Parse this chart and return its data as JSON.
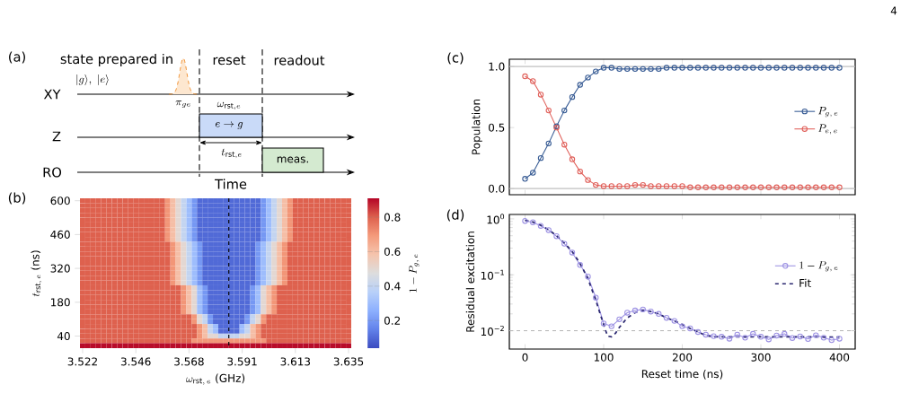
{
  "chart_data": [
    {
      "type": "other",
      "title": "(a)",
      "annotations": [
        "state prepared in",
        "|g\\rangle,\\ |e\\rangle",
        "reset",
        "readout",
        "XY",
        "Z",
        "RO",
        "\\pi_{ge}",
        "\\omega_{\\mathrm{rst},e}",
        "e \\to g",
        "t_{\\mathrm{rst},e}",
        "meas.",
        "Time",
        "4"
      ]
    },
    {
      "type": "heatmap",
      "title": "(b)",
      "xlabel": "\\omega_{\\mathrm{rst},\\,e}\\ \\mbox{(GHz)}",
      "ylabel": "t_{\\mathrm{rst},\\,e}\\ \\mbox{(ns)}",
      "clabel": "1-P_{g,\\,e}",
      "categories": [
        "3.522",
        null,
        null,
        null,
        null,
        null,
        null,
        null,
        null,
        null,
        "3.546",
        null,
        null,
        null,
        null,
        null,
        null,
        null,
        null,
        null,
        "3.568",
        null,
        null,
        null,
        null,
        null,
        null,
        null,
        null,
        null,
        "3.591",
        null,
        null,
        null,
        null,
        null,
        null,
        null,
        null,
        null,
        "3.613",
        null,
        null,
        null,
        null,
        null,
        null,
        null,
        null,
        null,
        "3.635"
      ],
      "y_categories": [
        "600",
        null,
        null,
        null,
        null,
        null,
        null,
        "460",
        null,
        null,
        null,
        null,
        null,
        null,
        "320",
        null,
        null,
        null,
        null,
        null,
        null,
        "180",
        null,
        null,
        null,
        null,
        null,
        null,
        "40",
        null,
        null
      ],
      "cells": [
        [
          0.8,
          0.8,
          0.8,
          0.8,
          0.8,
          0.8,
          0.8,
          0.8,
          0.8,
          0.8,
          0.8,
          0.8,
          0.8,
          0.8,
          0.8,
          0.8,
          0.7,
          0.6,
          0.5,
          0.4,
          0.3,
          0.2,
          0.1,
          0.1,
          0.1,
          0.1,
          0.1,
          0.1,
          0.1,
          0.1,
          0.1,
          0.1,
          0.1,
          0.1,
          0.2,
          0.3,
          0.4,
          0.5,
          0.6,
          0.7,
          0.8,
          0.8,
          0.8,
          0.8,
          0.8,
          0.8,
          0.8,
          0.8,
          0.8,
          0.8,
          0.8
        ],
        [
          0.8,
          0.8,
          0.8,
          0.8,
          0.8,
          0.8,
          0.8,
          0.8,
          0.8,
          0.8,
          0.8,
          0.8,
          0.8,
          0.8,
          0.8,
          0.8,
          0.7,
          0.6,
          0.5,
          0.4,
          0.3,
          0.2,
          0.1,
          0.1,
          0.1,
          0.1,
          0.1,
          0.1,
          0.1,
          0.1,
          0.1,
          0.1,
          0.1,
          0.1,
          0.2,
          0.3,
          0.4,
          0.5,
          0.6,
          0.7,
          0.8,
          0.8,
          0.8,
          0.8,
          0.8,
          0.8,
          0.8,
          0.8,
          0.8,
          0.8,
          0.8
        ],
        [
          0.8,
          0.8,
          0.8,
          0.8,
          0.8,
          0.8,
          0.8,
          0.8,
          0.8,
          0.8,
          0.8,
          0.8,
          0.8,
          0.8,
          0.8,
          0.8,
          0.7,
          0.6,
          0.5,
          0.4,
          0.3,
          0.2,
          0.1,
          0.1,
          0.1,
          0.1,
          0.1,
          0.1,
          0.1,
          0.1,
          0.1,
          0.1,
          0.1,
          0.1,
          0.2,
          0.3,
          0.4,
          0.5,
          0.6,
          0.7,
          0.8,
          0.8,
          0.8,
          0.8,
          0.8,
          0.8,
          0.8,
          0.8,
          0.8,
          0.8,
          0.8
        ],
        [
          0.8,
          0.8,
          0.8,
          0.8,
          0.8,
          0.8,
          0.8,
          0.8,
          0.8,
          0.8,
          0.8,
          0.8,
          0.8,
          0.8,
          0.8,
          0.8,
          0.7,
          0.6,
          0.5,
          0.4,
          0.3,
          0.2,
          0.1,
          0.1,
          0.1,
          0.1,
          0.1,
          0.1,
          0.1,
          0.1,
          0.1,
          0.1,
          0.1,
          0.1,
          0.2,
          0.3,
          0.4,
          0.5,
          0.6,
          0.7,
          0.8,
          0.8,
          0.8,
          0.8,
          0.8,
          0.8,
          0.8,
          0.8,
          0.8,
          0.8,
          0.8
        ],
        [
          0.8,
          0.8,
          0.8,
          0.8,
          0.8,
          0.8,
          0.8,
          0.8,
          0.8,
          0.8,
          0.8,
          0.8,
          0.8,
          0.8,
          0.8,
          0.8,
          0.7,
          0.6,
          0.5,
          0.4,
          0.3,
          0.2,
          0.1,
          0.1,
          0.1,
          0.1,
          0.1,
          0.1,
          0.1,
          0.1,
          0.1,
          0.1,
          0.1,
          0.1,
          0.2,
          0.3,
          0.4,
          0.5,
          0.6,
          0.7,
          0.8,
          0.8,
          0.8,
          0.8,
          0.8,
          0.8,
          0.8,
          0.8,
          0.8,
          0.8,
          0.8
        ],
        [
          0.8,
          0.8,
          0.8,
          0.8,
          0.8,
          0.8,
          0.8,
          0.8,
          0.8,
          0.8,
          0.8,
          0.8,
          0.8,
          0.8,
          0.8,
          0.8,
          0.7,
          0.6,
          0.5,
          0.4,
          0.3,
          0.2,
          0.1,
          0.1,
          0.1,
          0.1,
          0.1,
          0.1,
          0.1,
          0.1,
          0.1,
          0.1,
          0.1,
          0.1,
          0.2,
          0.3,
          0.4,
          0.5,
          0.6,
          0.7,
          0.8,
          0.8,
          0.8,
          0.8,
          0.8,
          0.8,
          0.8,
          0.8,
          0.8,
          0.8,
          0.8
        ],
        [
          0.8,
          0.8,
          0.8,
          0.8,
          0.8,
          0.8,
          0.8,
          0.8,
          0.8,
          0.8,
          0.8,
          0.8,
          0.8,
          0.8,
          0.8,
          0.8,
          0.7,
          0.6,
          0.5,
          0.4,
          0.3,
          0.2,
          0.1,
          0.1,
          0.1,
          0.1,
          0.1,
          0.1,
          0.1,
          0.1,
          0.1,
          0.1,
          0.1,
          0.1,
          0.2,
          0.3,
          0.4,
          0.5,
          0.6,
          0.7,
          0.8,
          0.8,
          0.8,
          0.8,
          0.8,
          0.8,
          0.8,
          0.8,
          0.8,
          0.8,
          0.8
        ],
        [
          0.8,
          0.8,
          0.8,
          0.8,
          0.8,
          0.8,
          0.8,
          0.8,
          0.8,
          0.8,
          0.8,
          0.8,
          0.8,
          0.8,
          0.8,
          0.8,
          0.7,
          0.6,
          0.5,
          0.4,
          0.3,
          0.2,
          0.1,
          0.1,
          0.1,
          0.1,
          0.1,
          0.1,
          0.1,
          0.1,
          0.1,
          0.1,
          0.1,
          0.1,
          0.2,
          0.3,
          0.4,
          0.5,
          0.6,
          0.7,
          0.8,
          0.8,
          0.8,
          0.8,
          0.8,
          0.8,
          0.8,
          0.8,
          0.8,
          0.8,
          0.8
        ],
        [
          0.8,
          0.8,
          0.8,
          0.8,
          0.8,
          0.8,
          0.8,
          0.8,
          0.8,
          0.8,
          0.8,
          0.8,
          0.8,
          0.8,
          0.8,
          0.8,
          0.7,
          0.6,
          0.5,
          0.4,
          0.3,
          0.2,
          0.1,
          0.1,
          0.1,
          0.1,
          0.1,
          0.1,
          0.1,
          0.1,
          0.1,
          0.1,
          0.1,
          0.1,
          0.2,
          0.3,
          0.4,
          0.5,
          0.6,
          0.7,
          0.8,
          0.8,
          0.8,
          0.8,
          0.8,
          0.8,
          0.8,
          0.8,
          0.8,
          0.8,
          0.8
        ],
        [
          0.8,
          0.8,
          0.8,
          0.8,
          0.8,
          0.8,
          0.8,
          0.8,
          0.8,
          0.8,
          0.8,
          0.8,
          0.8,
          0.8,
          0.8,
          0.8,
          0.8,
          0.7,
          0.6,
          0.5,
          0.4,
          0.3,
          0.2,
          0.1,
          0.1,
          0.1,
          0.1,
          0.1,
          0.1,
          0.1,
          0.1,
          0.1,
          0.1,
          0.2,
          0.3,
          0.4,
          0.5,
          0.6,
          0.7,
          0.8,
          0.8,
          0.8,
          0.8,
          0.8,
          0.8,
          0.8,
          0.8,
          0.8,
          0.8,
          0.8,
          0.8
        ],
        [
          0.8,
          0.8,
          0.8,
          0.8,
          0.8,
          0.8,
          0.8,
          0.8,
          0.8,
          0.8,
          0.8,
          0.8,
          0.8,
          0.8,
          0.8,
          0.8,
          0.8,
          0.7,
          0.6,
          0.5,
          0.4,
          0.3,
          0.2,
          0.1,
          0.1,
          0.1,
          0.1,
          0.1,
          0.1,
          0.1,
          0.1,
          0.1,
          0.1,
          0.2,
          0.3,
          0.4,
          0.5,
          0.6,
          0.7,
          0.8,
          0.8,
          0.8,
          0.8,
          0.8,
          0.8,
          0.8,
          0.8,
          0.8,
          0.8,
          0.8,
          0.8
        ],
        [
          0.8,
          0.8,
          0.8,
          0.8,
          0.8,
          0.8,
          0.8,
          0.8,
          0.8,
          0.8,
          0.8,
          0.8,
          0.8,
          0.8,
          0.8,
          0.8,
          0.8,
          0.7,
          0.6,
          0.5,
          0.4,
          0.3,
          0.2,
          0.1,
          0.1,
          0.1,
          0.1,
          0.1,
          0.1,
          0.1,
          0.1,
          0.1,
          0.1,
          0.2,
          0.3,
          0.4,
          0.5,
          0.6,
          0.7,
          0.8,
          0.8,
          0.8,
          0.8,
          0.8,
          0.8,
          0.8,
          0.8,
          0.8,
          0.8,
          0.8,
          0.8
        ],
        [
          0.8,
          0.8,
          0.8,
          0.8,
          0.8,
          0.8,
          0.8,
          0.8,
          0.8,
          0.8,
          0.8,
          0.8,
          0.8,
          0.8,
          0.8,
          0.8,
          0.8,
          0.7,
          0.6,
          0.5,
          0.4,
          0.3,
          0.2,
          0.1,
          0.1,
          0.1,
          0.1,
          0.1,
          0.1,
          0.1,
          0.1,
          0.1,
          0.1,
          0.2,
          0.3,
          0.4,
          0.5,
          0.6,
          0.7,
          0.8,
          0.8,
          0.8,
          0.8,
          0.8,
          0.8,
          0.8,
          0.8,
          0.8,
          0.8,
          0.8,
          0.8
        ],
        [
          0.8,
          0.8,
          0.8,
          0.8,
          0.8,
          0.8,
          0.8,
          0.8,
          0.8,
          0.8,
          0.8,
          0.8,
          0.8,
          0.8,
          0.8,
          0.8,
          0.8,
          0.7,
          0.6,
          0.5,
          0.4,
          0.3,
          0.2,
          0.1,
          0.1,
          0.1,
          0.1,
          0.1,
          0.1,
          0.1,
          0.1,
          0.1,
          0.1,
          0.2,
          0.3,
          0.4,
          0.5,
          0.6,
          0.7,
          0.8,
          0.8,
          0.8,
          0.8,
          0.8,
          0.8,
          0.8,
          0.8,
          0.8,
          0.8,
          0.8,
          0.8
        ],
        [
          0.8,
          0.8,
          0.8,
          0.8,
          0.8,
          0.8,
          0.8,
          0.8,
          0.8,
          0.8,
          0.8,
          0.8,
          0.8,
          0.8,
          0.8,
          0.8,
          0.8,
          0.7,
          0.6,
          0.5,
          0.4,
          0.3,
          0.2,
          0.1,
          0.1,
          0.1,
          0.1,
          0.1,
          0.1,
          0.1,
          0.1,
          0.1,
          0.1,
          0.2,
          0.3,
          0.4,
          0.5,
          0.6,
          0.7,
          0.8,
          0.8,
          0.8,
          0.8,
          0.8,
          0.8,
          0.8,
          0.8,
          0.8,
          0.8,
          0.8,
          0.8
        ],
        [
          0.8,
          0.8,
          0.8,
          0.8,
          0.8,
          0.8,
          0.8,
          0.8,
          0.8,
          0.8,
          0.8,
          0.8,
          0.8,
          0.8,
          0.8,
          0.8,
          0.8,
          0.7,
          0.6,
          0.5,
          0.4,
          0.3,
          0.2,
          0.1,
          0.1,
          0.1,
          0.1,
          0.1,
          0.1,
          0.1,
          0.1,
          0.1,
          0.1,
          0.2,
          0.3,
          0.4,
          0.5,
          0.6,
          0.7,
          0.8,
          0.8,
          0.8,
          0.8,
          0.8,
          0.8,
          0.8,
          0.8,
          0.8,
          0.8,
          0.8,
          0.8
        ],
        [
          0.8,
          0.8,
          0.8,
          0.8,
          0.8,
          0.8,
          0.8,
          0.8,
          0.8,
          0.8,
          0.8,
          0.8,
          0.8,
          0.8,
          0.8,
          0.8,
          0.8,
          0.7,
          0.6,
          0.5,
          0.4,
          0.3,
          0.2,
          0.1,
          0.1,
          0.1,
          0.1,
          0.1,
          0.1,
          0.1,
          0.1,
          0.1,
          0.1,
          0.2,
          0.3,
          0.4,
          0.5,
          0.6,
          0.7,
          0.8,
          0.8,
          0.8,
          0.8,
          0.8,
          0.8,
          0.8,
          0.8,
          0.8,
          0.8,
          0.8,
          0.8
        ],
        [
          0.8,
          0.8,
          0.8,
          0.8,
          0.8,
          0.8,
          0.8,
          0.8,
          0.8,
          0.8,
          0.8,
          0.8,
          0.8,
          0.8,
          0.8,
          0.8,
          0.8,
          0.7,
          0.6,
          0.5,
          0.4,
          0.3,
          0.2,
          0.1,
          0.1,
          0.1,
          0.1,
          0.1,
          0.1,
          0.1,
          0.1,
          0.1,
          0.1,
          0.2,
          0.3,
          0.4,
          0.5,
          0.6,
          0.7,
          0.8,
          0.8,
          0.8,
          0.8,
          0.8,
          0.8,
          0.8,
          0.8,
          0.8,
          0.8,
          0.8,
          0.8
        ],
        [
          0.8,
          0.8,
          0.8,
          0.8,
          0.8,
          0.8,
          0.8,
          0.8,
          0.8,
          0.8,
          0.8,
          0.8,
          0.8,
          0.8,
          0.8,
          0.8,
          0.8,
          0.8,
          0.8,
          0.7,
          0.6,
          0.5,
          0.3,
          0.2,
          0.1,
          0.1,
          0.1,
          0.1,
          0.1,
          0.1,
          0.1,
          0.1,
          0.2,
          0.3,
          0.5,
          0.6,
          0.7,
          0.8,
          0.8,
          0.8,
          0.8,
          0.8,
          0.8,
          0.8,
          0.8,
          0.8,
          0.8,
          0.8,
          0.8,
          0.8,
          0.8
        ],
        [
          0.8,
          0.8,
          0.8,
          0.8,
          0.8,
          0.8,
          0.8,
          0.8,
          0.8,
          0.8,
          0.8,
          0.8,
          0.8,
          0.8,
          0.8,
          0.8,
          0.8,
          0.8,
          0.8,
          0.7,
          0.6,
          0.5,
          0.3,
          0.2,
          0.1,
          0.1,
          0.1,
          0.1,
          0.1,
          0.1,
          0.1,
          0.1,
          0.2,
          0.3,
          0.5,
          0.6,
          0.7,
          0.8,
          0.8,
          0.8,
          0.8,
          0.8,
          0.8,
          0.8,
          0.8,
          0.8,
          0.8,
          0.8,
          0.8,
          0.8,
          0.8
        ],
        [
          0.8,
          0.8,
          0.8,
          0.8,
          0.8,
          0.8,
          0.8,
          0.8,
          0.8,
          0.8,
          0.8,
          0.8,
          0.8,
          0.8,
          0.8,
          0.8,
          0.8,
          0.8,
          0.8,
          0.7,
          0.6,
          0.5,
          0.3,
          0.2,
          0.1,
          0.1,
          0.1,
          0.1,
          0.1,
          0.1,
          0.1,
          0.1,
          0.2,
          0.3,
          0.5,
          0.6,
          0.7,
          0.8,
          0.8,
          0.8,
          0.8,
          0.8,
          0.8,
          0.8,
          0.8,
          0.8,
          0.8,
          0.8,
          0.8,
          0.8,
          0.8
        ],
        [
          0.8,
          0.8,
          0.8,
          0.8,
          0.8,
          0.8,
          0.8,
          0.8,
          0.8,
          0.8,
          0.8,
          0.8,
          0.8,
          0.8,
          0.8,
          0.8,
          0.8,
          0.8,
          0.8,
          0.7,
          0.6,
          0.5,
          0.3,
          0.2,
          0.1,
          0.1,
          0.1,
          0.1,
          0.1,
          0.1,
          0.1,
          0.1,
          0.2,
          0.3,
          0.5,
          0.6,
          0.7,
          0.8,
          0.8,
          0.8,
          0.8,
          0.8,
          0.8,
          0.8,
          0.8,
          0.8,
          0.8,
          0.8,
          0.8,
          0.8,
          0.8
        ],
        [
          0.8,
          0.8,
          0.8,
          0.8,
          0.8,
          0.8,
          0.8,
          0.8,
          0.8,
          0.8,
          0.8,
          0.8,
          0.8,
          0.8,
          0.8,
          0.8,
          0.8,
          0.8,
          0.8,
          0.7,
          0.6,
          0.5,
          0.3,
          0.2,
          0.1,
          0.1,
          0.1,
          0.1,
          0.1,
          0.1,
          0.1,
          0.1,
          0.2,
          0.3,
          0.5,
          0.6,
          0.7,
          0.8,
          0.8,
          0.8,
          0.8,
          0.8,
          0.8,
          0.8,
          0.8,
          0.8,
          0.8,
          0.8,
          0.8,
          0.8,
          0.8
        ],
        [
          0.8,
          0.8,
          0.8,
          0.8,
          0.8,
          0.8,
          0.8,
          0.8,
          0.8,
          0.8,
          0.8,
          0.8,
          0.8,
          0.8,
          0.8,
          0.8,
          0.8,
          0.8,
          0.8,
          0.7,
          0.6,
          0.5,
          0.3,
          0.2,
          0.1,
          0.1,
          0.1,
          0.1,
          0.1,
          0.1,
          0.1,
          0.1,
          0.2,
          0.3,
          0.5,
          0.6,
          0.7,
          0.8,
          0.8,
          0.8,
          0.8,
          0.8,
          0.8,
          0.8,
          0.8,
          0.8,
          0.8,
          0.8,
          0.8,
          0.8,
          0.8
        ],
        [
          0.8,
          0.8,
          0.8,
          0.8,
          0.8,
          0.8,
          0.8,
          0.8,
          0.8,
          0.8,
          0.8,
          0.8,
          0.8,
          0.8,
          0.8,
          0.8,
          0.8,
          0.8,
          0.8,
          0.8,
          0.8,
          0.7,
          0.5,
          0.4,
          0.2,
          0.1,
          0.1,
          0.1,
          0.1,
          0.1,
          0.1,
          0.2,
          0.4,
          0.5,
          0.7,
          0.8,
          0.8,
          0.8,
          0.8,
          0.8,
          0.8,
          0.8,
          0.8,
          0.8,
          0.8,
          0.8,
          0.8,
          0.8,
          0.8,
          0.8,
          0.8
        ],
        [
          0.8,
          0.8,
          0.8,
          0.8,
          0.8,
          0.8,
          0.8,
          0.8,
          0.8,
          0.8,
          0.8,
          0.8,
          0.8,
          0.8,
          0.8,
          0.8,
          0.8,
          0.8,
          0.8,
          0.8,
          0.8,
          0.7,
          0.5,
          0.4,
          0.2,
          0.1,
          0.1,
          0.1,
          0.1,
          0.1,
          0.1,
          0.2,
          0.4,
          0.5,
          0.7,
          0.8,
          0.8,
          0.8,
          0.8,
          0.8,
          0.8,
          0.8,
          0.8,
          0.8,
          0.8,
          0.8,
          0.8,
          0.8,
          0.8,
          0.8,
          0.8
        ],
        [
          0.8,
          0.8,
          0.8,
          0.8,
          0.8,
          0.8,
          0.8,
          0.8,
          0.8,
          0.8,
          0.8,
          0.8,
          0.8,
          0.8,
          0.8,
          0.8,
          0.8,
          0.8,
          0.8,
          0.8,
          0.8,
          0.8,
          0.7,
          0.6,
          0.4,
          0.3,
          0.1,
          0.1,
          0.1,
          0.1,
          0.3,
          0.4,
          0.6,
          0.7,
          0.8,
          0.8,
          0.8,
          0.8,
          0.8,
          0.8,
          0.8,
          0.8,
          0.8,
          0.8,
          0.8,
          0.8,
          0.8,
          0.8,
          0.8,
          0.8,
          0.8
        ],
        [
          0.8,
          0.8,
          0.8,
          0.8,
          0.8,
          0.8,
          0.8,
          0.8,
          0.8,
          0.8,
          0.8,
          0.8,
          0.8,
          0.8,
          0.8,
          0.8,
          0.8,
          0.8,
          0.8,
          0.8,
          0.8,
          0.8,
          0.7,
          0.6,
          0.4,
          0.3,
          0.1,
          0.1,
          0.1,
          0.1,
          0.3,
          0.4,
          0.6,
          0.7,
          0.8,
          0.8,
          0.8,
          0.8,
          0.8,
          0.8,
          0.8,
          0.8,
          0.8,
          0.8,
          0.8,
          0.8,
          0.8,
          0.8,
          0.8,
          0.8,
          0.8
        ],
        [
          0.8,
          0.8,
          0.8,
          0.8,
          0.8,
          0.8,
          0.8,
          0.8,
          0.8,
          0.8,
          0.8,
          0.8,
          0.8,
          0.8,
          0.8,
          0.8,
          0.8,
          0.8,
          0.8,
          0.8,
          0.8,
          0.8,
          0.7,
          0.6,
          0.5,
          0.5,
          0.4,
          0.4,
          0.4,
          0.4,
          0.5,
          0.5,
          0.6,
          0.7,
          0.8,
          0.8,
          0.8,
          0.8,
          0.8,
          0.8,
          0.8,
          0.8,
          0.8,
          0.8,
          0.8,
          0.8,
          0.8,
          0.8,
          0.8,
          0.8,
          0.8
        ],
        [
          0.8,
          0.8,
          0.8,
          0.8,
          0.8,
          0.8,
          0.8,
          0.8,
          0.8,
          0.8,
          0.8,
          0.8,
          0.8,
          0.8,
          0.8,
          0.8,
          0.8,
          0.8,
          0.8,
          0.8,
          0.8,
          0.7,
          0.7,
          0.7,
          0.7,
          0.7,
          0.7,
          0.7,
          0.7,
          0.7,
          0.7,
          0.7,
          0.7,
          0.7,
          0.7,
          0.8,
          0.8,
          0.8,
          0.8,
          0.8,
          0.8,
          0.8,
          0.8,
          0.8,
          0.8,
          0.8,
          0.8,
          0.8,
          0.8,
          0.8,
          0.8
        ],
        [
          0.9,
          0.9,
          0.9,
          0.9,
          0.9,
          0.9,
          0.9,
          0.9,
          0.9,
          0.9,
          0.9,
          0.9,
          0.9,
          0.9,
          0.9,
          0.9,
          0.9,
          0.9,
          0.9,
          0.9,
          0.9,
          0.9,
          0.9,
          0.9,
          0.9,
          0.9,
          0.9,
          0.9,
          0.9,
          0.9,
          0.9,
          0.9,
          0.9,
          0.9,
          0.9,
          0.9,
          0.9,
          0.9,
          0.9,
          0.9,
          0.9,
          0.9,
          0.9,
          0.9,
          0.9,
          0.9,
          0.9,
          0.9,
          0.9,
          0.9,
          0.9
        ]
      ],
      "clim": [
        0.04,
        0.91
      ],
      "cticks": [
        0.2,
        0.4,
        0.6,
        0.8
      ]
    },
    {
      "type": "line",
      "title": "(c)",
      "ylabel": "Population",
      "x": [
        0,
        10,
        20,
        30,
        40,
        50,
        60,
        70,
        80,
        90,
        100,
        110,
        120,
        130,
        140,
        150,
        160,
        170,
        180,
        190,
        200,
        210,
        220,
        230,
        240,
        250,
        260,
        270,
        280,
        290,
        300,
        310,
        320,
        330,
        340,
        350,
        360,
        370,
        380,
        390,
        400
      ],
      "series": [
        {
          "name": "P_{g,\\,e}",
          "color": "#375b94",
          "values": [
            0.08,
            0.13,
            0.25,
            0.37,
            0.51,
            0.64,
            0.75,
            0.85,
            0.91,
            0.96,
            0.99,
            0.99,
            0.98,
            0.98,
            0.98,
            0.98,
            0.98,
            0.98,
            0.99,
            0.99,
            0.99,
            0.99,
            0.99,
            0.99,
            0.99,
            0.99,
            0.99,
            0.99,
            0.99,
            0.99,
            0.99,
            0.99,
            0.99,
            0.99,
            0.99,
            0.99,
            0.99,
            0.99,
            0.99,
            0.99,
            0.99
          ]
        },
        {
          "name": "P_{e,\\,e}",
          "color": "#e0605a",
          "values": [
            0.92,
            0.88,
            0.77,
            0.64,
            0.5,
            0.36,
            0.24,
            0.14,
            0.07,
            0.03,
            0.02,
            0.02,
            0.02,
            0.02,
            0.03,
            0.03,
            0.02,
            0.02,
            0.02,
            0.02,
            0.02,
            0.01,
            0.01,
            0.01,
            0.01,
            0.01,
            0.01,
            0.01,
            0.01,
            0.01,
            0.01,
            0.01,
            0.01,
            0.01,
            0.01,
            0.01,
            0.01,
            0.01,
            0.01,
            0.01,
            0.01
          ]
        }
      ],
      "xlim": [
        -20,
        420
      ],
      "ylim": [
        -0.05,
        1.06
      ],
      "xticks": [
        {
          "value": 0,
          "label": null
        },
        {
          "value": 100,
          "label": null
        },
        {
          "value": 200,
          "label": null
        },
        {
          "value": 300,
          "label": null
        },
        {
          "value": 400,
          "label": null
        }
      ],
      "yticks": [
        {
          "value": 0,
          "label": "0.0"
        },
        {
          "value": 0.5,
          "label": "0.5"
        },
        {
          "value": 1,
          "label": "1.0"
        }
      ],
      "ref_lines": [
        {
          "axis": "y",
          "value": 0,
          "color": "#c0c0c0"
        },
        {
          "axis": "y",
          "value": 1,
          "color": "#c0c0c0"
        }
      ],
      "legend": "right",
      "marker": "circle",
      "tick_labels": "y"
    },
    {
      "type": "line",
      "title": "(d)",
      "xlabel": "Reset time (ns)",
      "ylabel": "Residual excitation",
      "x": [
        0,
        10,
        20,
        30,
        40,
        50,
        60,
        70,
        80,
        90,
        100,
        110,
        120,
        130,
        140,
        150,
        160,
        170,
        180,
        190,
        200,
        210,
        220,
        230,
        240,
        250,
        260,
        270,
        280,
        290,
        300,
        310,
        320,
        330,
        340,
        350,
        360,
        370,
        380,
        390,
        400
      ],
      "series": [
        {
          "name": "1-P_{g,\\,e}",
          "color": "#9d92e3",
          "values": [
            0.92,
            0.87,
            0.75,
            0.63,
            0.49,
            0.36,
            0.25,
            0.15,
            0.093,
            0.039,
            0.0135,
            0.012,
            0.016,
            0.021,
            0.023,
            0.024,
            0.022,
            0.02,
            0.017,
            0.015,
            0.012,
            0.011,
            0.0095,
            0.0085,
            0.008,
            0.0078,
            0.0072,
            0.0085,
            0.0075,
            0.0088,
            0.0078,
            0.007,
            0.0082,
            0.0088,
            0.0074,
            0.0079,
            0.0071,
            0.0083,
            0.0075,
            0.0068,
            0.0072
          ]
        },
        {
          "name": "\\mbox{Fit}",
          "color": "#2b2870",
          "marker": "none",
          "line_style": "dashed",
          "x": [
            0,
            10,
            20,
            30,
            40,
            50,
            60,
            70,
            80,
            90,
            100,
            105,
            110,
            115,
            120,
            130,
            140,
            150,
            160,
            170,
            180,
            190,
            200,
            210,
            220,
            230,
            240,
            260,
            300,
            350,
            400
          ],
          "values": [
            0.95,
            0.88,
            0.77,
            0.64,
            0.5,
            0.37,
            0.26,
            0.16,
            0.085,
            0.035,
            0.0128,
            0.008,
            0.0078,
            0.009,
            0.0115,
            0.017,
            0.021,
            0.023,
            0.022,
            0.02,
            0.017,
            0.015,
            0.013,
            0.011,
            0.0095,
            0.0082,
            0.0078,
            0.0078,
            0.0078,
            0.0078,
            0.0077
          ]
        }
      ],
      "xlim": [
        -20,
        420
      ],
      "ylim": [
        0.0047,
        1.2
      ],
      "log": "y",
      "xticks": [
        0,
        100,
        200,
        300,
        400
      ],
      "yticks": [
        {
          "value": 0.01,
          "label": "10$^{−2}$"
        },
        {
          "value": 0.1,
          "label": "10$^{−1}$"
        },
        {
          "value": 1,
          "label": "10$^{0}$"
        }
      ],
      "ref_lines": [
        {
          "axis": "y",
          "value": 0.01,
          "color": "#b8b8b8",
          "line_style": "dashed"
        }
      ],
      "legend": "right",
      "marker": "circle"
    }
  ]
}
